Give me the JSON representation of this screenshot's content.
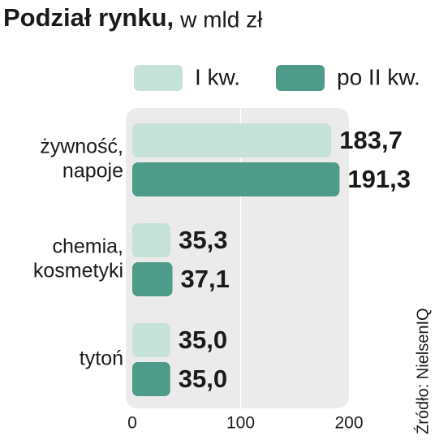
{
  "chart_data": {
    "type": "bar",
    "orientation": "horizontal",
    "title": "Podział rynku,",
    "subtitle": "w mld zł",
    "source": "Źródło: NielsenIQ",
    "categories": [
      [
        "żywność,",
        "napoje"
      ],
      [
        "chemia,",
        "kosmetyki"
      ],
      [
        "tytoń"
      ]
    ],
    "series": [
      {
        "name": "I kw.",
        "color": "#c6e1d8",
        "values": [
          183.7,
          35.3,
          35.0
        ],
        "value_labels": [
          "183,7",
          "35,3",
          "35,0"
        ]
      },
      {
        "name": "po II kw.",
        "color": "#4f9b89",
        "values": [
          191.3,
          37.1,
          35.0
        ],
        "value_labels": [
          "191,3",
          "37,1",
          "35,0"
        ]
      }
    ],
    "xlim": [
      0,
      200
    ],
    "xticks": [
      0,
      100,
      200
    ],
    "grid": true
  }
}
